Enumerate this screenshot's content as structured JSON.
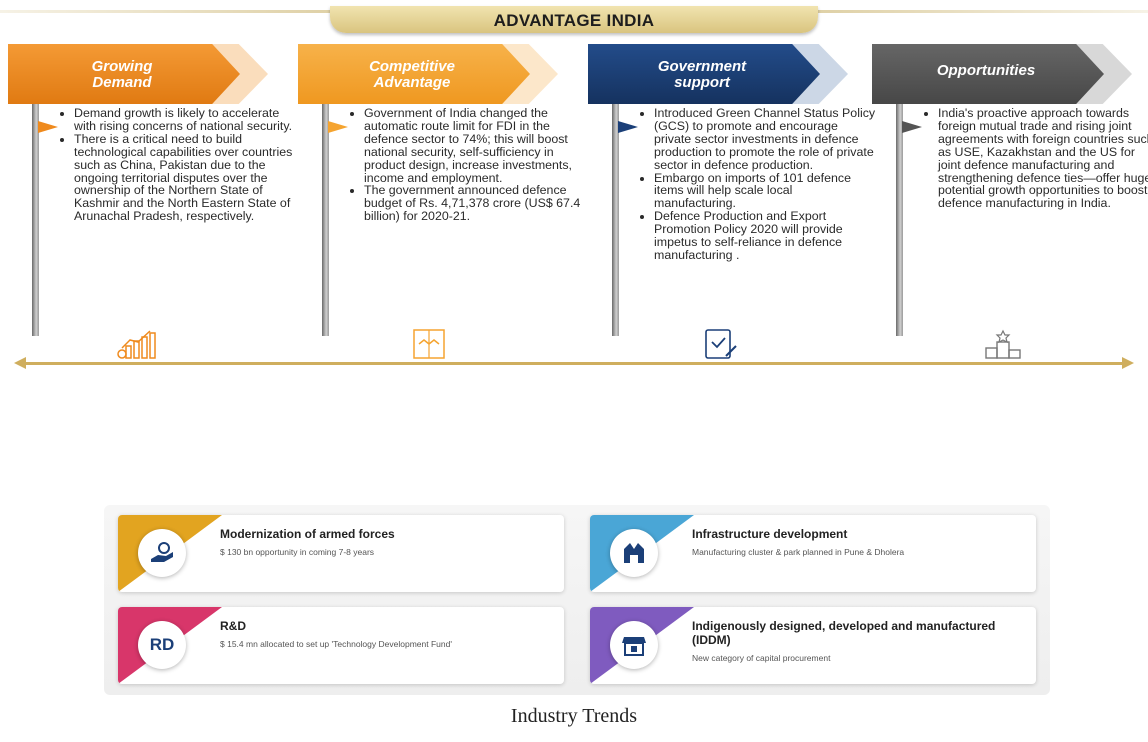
{
  "header": {
    "title": "ADVANTAGE INDIA"
  },
  "columns": [
    {
      "title_line1": "Growing",
      "title_line2": "Demand",
      "color": "#ef8a1d",
      "icon": "growth-chart-icon",
      "bullets": [
        "Demand growth is likely to accelerate with rising concerns of national security.",
        "There is a critical need to build technological capabilities over countries such as China, Pakistan due to the ongoing territorial disputes over the ownership of the Northern State of Kashmir and the North Eastern State of Arunachal Pradesh, respectively."
      ]
    },
    {
      "title_line1": "Competitive",
      "title_line2": "Advantage",
      "color": "#f5a430",
      "icon": "handshake-book-icon",
      "bullets": [
        "Government of India changed the automatic route limit for FDI in the defence sector to 74%; this will boost national security, self-sufficiency in product design, increase investments, income and employment.",
        "The government announced defence budget of Rs. 4,71,378 crore (US$ 67.4 billion) for 2020-21."
      ]
    },
    {
      "title_line1": "Government",
      "title_line2": "support",
      "color": "#1b3f78",
      "icon": "policy-document-icon",
      "bullets": [
        "Introduced Green Channel Status Policy (GCS) to promote and encourage private sector investments in defence production to promote the role of private sector in defence production.",
        "Embargo on imports of 101 defence items will help scale local manufacturing.",
        "Defence Production and Export Promotion Policy 2020 will provide impetus to self-reliance in defence manufacturing ."
      ]
    },
    {
      "title_line1": "Opportunities",
      "title_line2": "",
      "color": "#545454",
      "icon": "podium-icon",
      "bullets": [
        "India's proactive approach towards foreign mutual trade and rising joint agreements with foreign countries such as USE, Kazakhstan and the US for joint defence manufacturing and strengthening defence ties—offer huge potential growth opportunities to boost defence manufacturing in India."
      ]
    }
  ],
  "trends": [
    {
      "title": "Modernization of armed forces",
      "desc": "$ 130 bn opportunity in coming 7-8 years",
      "color": "#e2a420",
      "icon": "hand-coin-icon"
    },
    {
      "title": "Infrastructure development",
      "desc": "Manufacturing cluster & park planned in Pune & Dholera",
      "color": "#4aa6d6",
      "icon": "factory-icon"
    },
    {
      "title": "R&D",
      "desc": "$ 15.4 mn allocated to set up 'Technology Development Fund'",
      "color": "#d8366a",
      "icon": "rnd-icon",
      "badge_text": "RD"
    },
    {
      "title": "Indigenously designed, developed and manufactured (IDDM)",
      "desc": "New category of capital procurement",
      "color": "#7f5bbf",
      "icon": "store-icon"
    }
  ],
  "footer": {
    "caption": "Industry Trends"
  }
}
